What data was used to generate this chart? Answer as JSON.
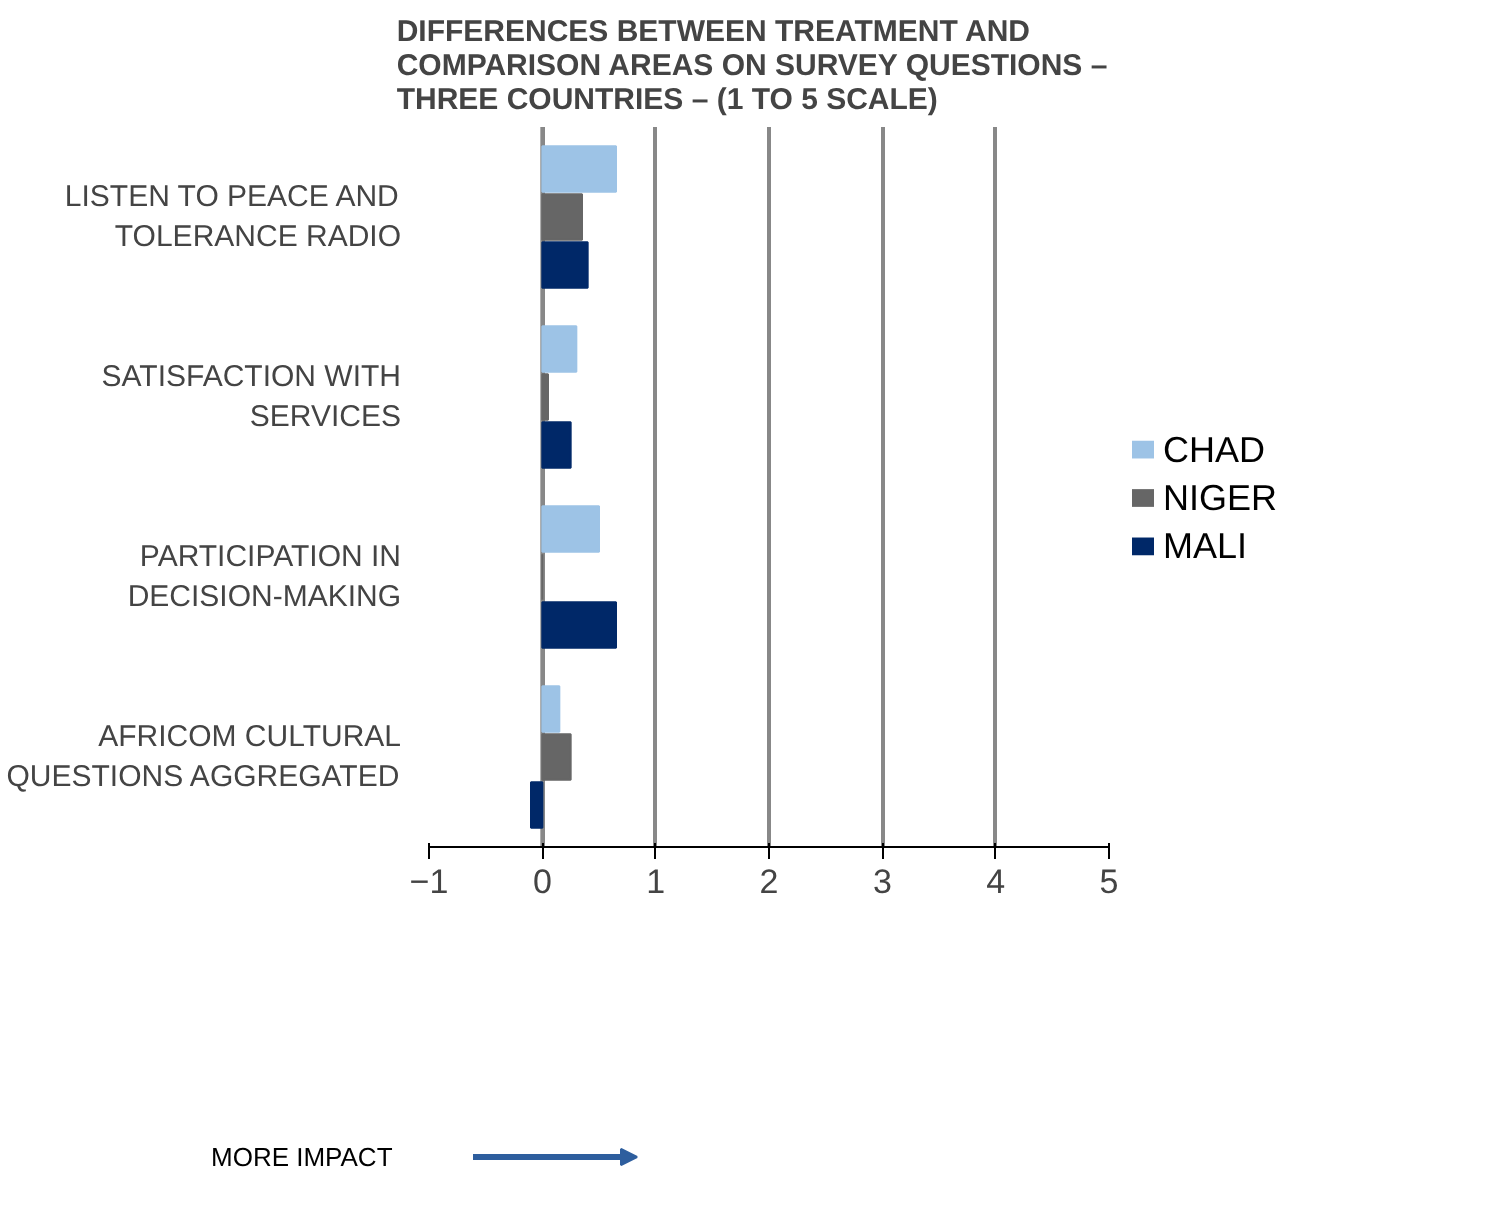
{
  "chart_data": {
    "type": "bar",
    "orientation": "horizontal",
    "title": "DIFFERENCES BETWEEN TREATMENT AND COMPARISON AREAS ON SURVEY QUESTIONS – THREE COUNTRIES – (1 TO 5 SCALE)",
    "categories": [
      "LISTEN TO PEACE AND TOLERANCE RADIO",
      "SATISFACTION WITH SERVICES",
      "PARTICIPATION IN DECISION-MAKING",
      "AFRICOM CULTURAL QUESTIONS AGGREGATED"
    ],
    "series": [
      {
        "name": "CHAD",
        "color": "#9dc3e6",
        "values": [
          0.65,
          0.3,
          0.5,
          0.15
        ]
      },
      {
        "name": "NIGER",
        "color": "#666666",
        "values": [
          0.35,
          0.05,
          0,
          0.25
        ]
      },
      {
        "name": "MALI",
        "color": "#002868",
        "values": [
          0.4,
          0.25,
          0.65,
          -0.1
        ]
      }
    ],
    "xlim": [
      -1,
      5
    ],
    "xticks": [
      -1,
      0,
      1,
      2,
      3,
      4,
      5
    ],
    "grid": "x",
    "legend": "right",
    "annotations": [
      "MORE IMPACT"
    ]
  }
}
